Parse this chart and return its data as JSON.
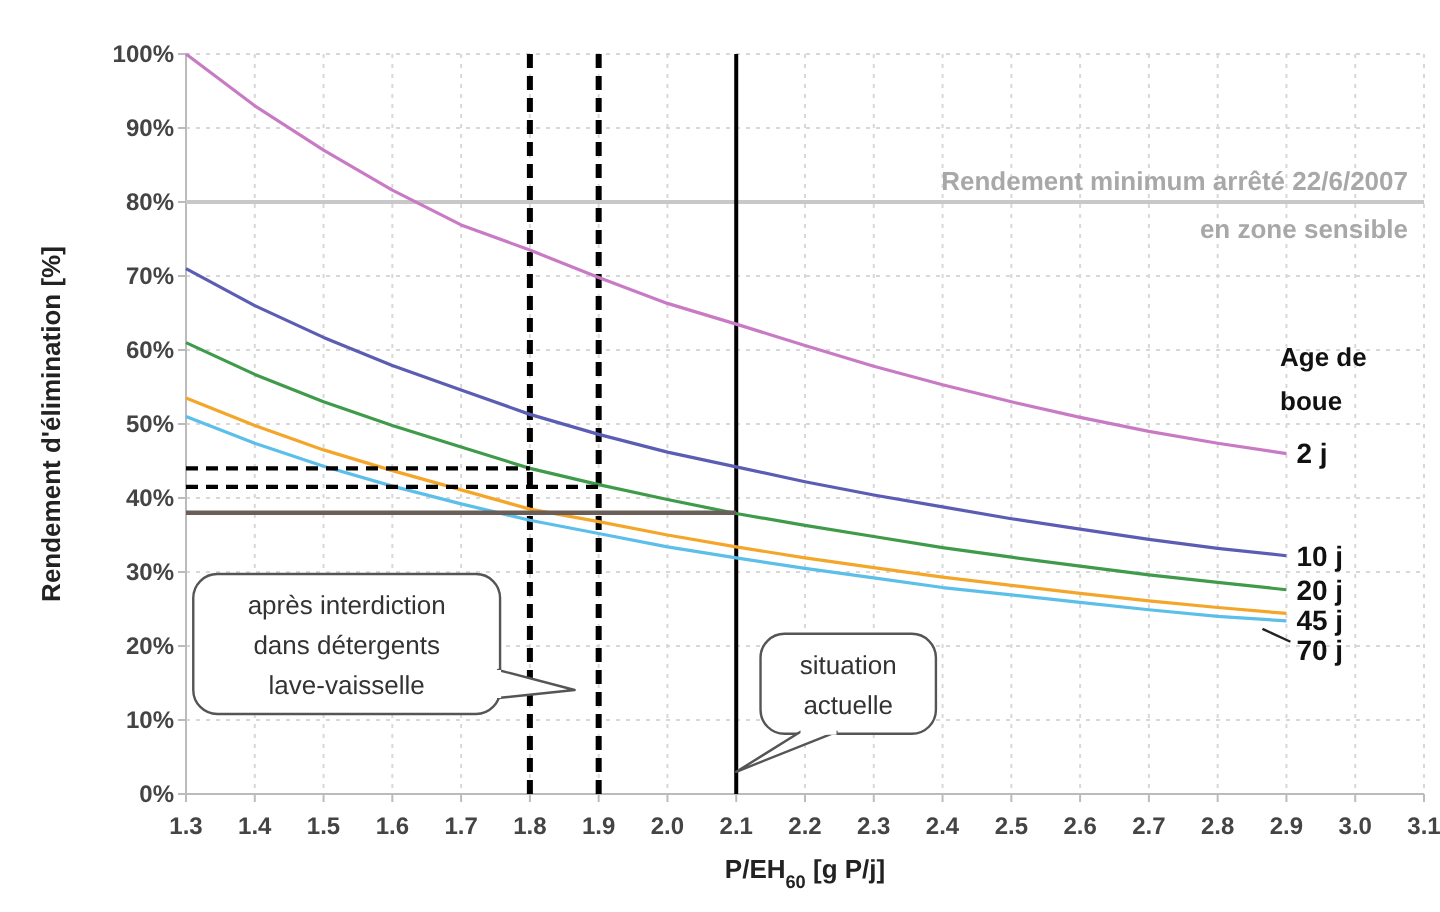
{
  "chart_data": {
    "type": "line",
    "xlabel": "P/EH$_{60}$ [g P/j]",
    "ylabel": "Rendement d'élimination [%]",
    "legend_title": "Age de boue",
    "x": [
      1.3,
      1.4,
      1.5,
      1.6,
      1.7,
      1.8,
      1.9,
      2.0,
      2.1,
      2.2,
      2.3,
      2.4,
      2.5,
      2.6,
      2.7,
      2.8,
      2.9
    ],
    "series": [
      {
        "name": "2 j",
        "color": "#c87bc4",
        "values": [
          100,
          93,
          87,
          81.6,
          76.9,
          73.5,
          69.8,
          66.3,
          63.5,
          60.6,
          57.8,
          55.3,
          53,
          50.9,
          49,
          47.4,
          46
        ]
      },
      {
        "name": "10 j",
        "color": "#5a5db3",
        "values": [
          71,
          66,
          61.7,
          57.9,
          54.6,
          51.3,
          48.6,
          46.2,
          44.2,
          42.2,
          40.4,
          38.8,
          37.2,
          35.8,
          34.4,
          33.2,
          32.2
        ]
      },
      {
        "name": "20 j",
        "color": "#3f9b4a",
        "values": [
          61,
          56.7,
          53,
          49.8,
          46.9,
          44,
          41.8,
          39.8,
          37.9,
          36.3,
          34.8,
          33.3,
          32,
          30.8,
          29.6,
          28.6,
          27.6
        ]
      },
      {
        "name": "45 j",
        "color": "#f4a62a",
        "values": [
          53.5,
          49.8,
          46.5,
          43.7,
          41.1,
          38.5,
          36.8,
          35,
          33.4,
          31.9,
          30.6,
          29.3,
          28.2,
          27.1,
          26.1,
          25.2,
          24.4
        ]
      },
      {
        "name": "70 j",
        "color": "#5bbfe9",
        "values": [
          51,
          47.4,
          44.3,
          41.6,
          39.2,
          37,
          35.2,
          33.4,
          31.9,
          30.5,
          29.2,
          27.9,
          26.9,
          25.9,
          24.9,
          24,
          23.4
        ]
      },
      {
        "type": "line",
        "color": "#000000",
        "line_style": "dashed",
        "x": [
          1.3,
          1.8
        ],
        "values": [
          44,
          44
        ]
      },
      {
        "type": "line",
        "color": "#000000",
        "line_style": "dashed",
        "x": [
          1.3,
          1.9
        ],
        "values": [
          41.5,
          41.5
        ]
      },
      {
        "type": "line",
        "color": "#6b5e58",
        "line_style": "solid",
        "x": [
          1.3,
          2.1
        ],
        "values": [
          38,
          38
        ]
      }
    ],
    "xlim": [
      1.3,
      3.1
    ],
    "xticks": [
      1.3,
      1.4,
      1.5,
      1.6,
      1.7,
      1.8,
      1.9,
      {
        "value": 2,
        "label": "2.0"
      },
      2.1,
      2.2,
      2.3,
      2.4,
      2.5,
      2.6,
      2.7,
      2.8,
      2.9,
      {
        "value": 3,
        "label": "3.0"
      },
      3.1
    ],
    "ylim": [
      0,
      100
    ],
    "yticks": [
      {
        "value": 0,
        "label": "0%"
      },
      {
        "value": 10,
        "label": "10%"
      },
      {
        "value": 20,
        "label": "20%"
      },
      {
        "value": 30,
        "label": "30%"
      },
      {
        "value": 40,
        "label": "40%"
      },
      {
        "value": 50,
        "label": "50%"
      },
      {
        "value": 60,
        "label": "60%"
      },
      {
        "value": 70,
        "label": "70%"
      },
      {
        "value": 80,
        "label": "80%"
      },
      {
        "value": 90,
        "label": "90%"
      },
      {
        "value": 100,
        "label": "100%"
      }
    ],
    "grid": true,
    "marker": "none",
    "line_style": "solid",
    "ref_lines": [
      {
        "axis": "y",
        "value": 80,
        "label": "Rendement minimum arrêté 22/6/2007\nen zone sensible",
        "color": "#c8c8c8",
        "line_style": "solid"
      },
      {
        "axis": "x",
        "value": 1.8,
        "color": "#000000",
        "line_style": "dashed"
      },
      {
        "axis": "x",
        "value": 1.9,
        "color": "#000000",
        "line_style": "dashed"
      },
      {
        "axis": "x",
        "value": 2.1,
        "color": "#000000",
        "line_style": "solid"
      }
    ],
    "annotations": [
      "après interdiction\ndans détergents\nlave-vaisselle",
      {
        "text": "situation\nactuelle",
        "x": 2.1,
        "y": 3
      }
    ]
  }
}
